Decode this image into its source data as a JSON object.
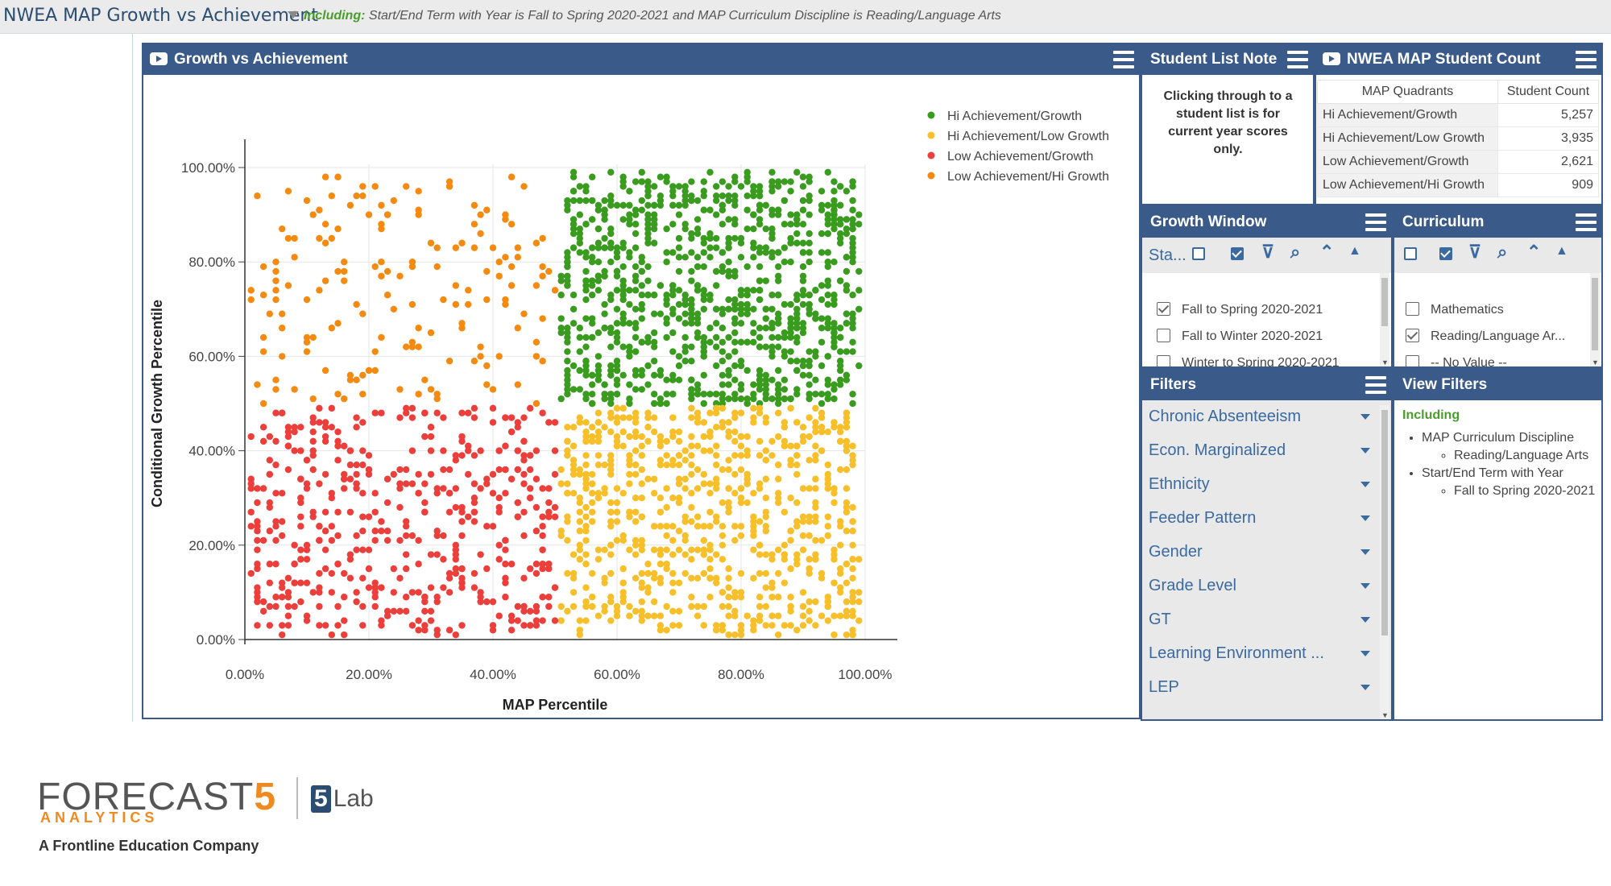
{
  "header": {
    "title": "NWEA MAP Growth vs Achievement",
    "filter_prefix": "Including:",
    "filter_text": "Start/End Term with Year is Fall to Spring 2020-2021 and MAP Curriculum Discipline is Reading/Language Arts"
  },
  "growth_panel": {
    "title": "Growth vs Achievement",
    "legend": [
      {
        "label": "Hi Achievement/Growth",
        "color": "#3a9c1f"
      },
      {
        "label": "Hi Achievement/Low Growth",
        "color": "#f7bf2a"
      },
      {
        "label": "Low Achievement/Growth",
        "color": "#ec3e3a"
      },
      {
        "label": "Low Achievement/Hi Growth",
        "color": "#f58a10"
      }
    ]
  },
  "chart_data": {
    "type": "scatter",
    "xlabel": "MAP Percentile",
    "ylabel": "Conditional Growth Percentile",
    "xlim": [
      0,
      1
    ],
    "ylim": [
      0,
      1
    ],
    "x_ticks": [
      "0.00%",
      "20.00%",
      "40.00%",
      "60.00%",
      "80.00%",
      "100.00%"
    ],
    "y_ticks": [
      "0.00%",
      "20.00%",
      "40.00%",
      "60.00%",
      "80.00%",
      "100.00%"
    ],
    "grid": true,
    "legend_position": "top-right",
    "series": [
      {
        "name": "Hi Achievement/Growth",
        "x_range": [
          0.51,
          0.99
        ],
        "y_range": [
          0.5,
          0.99
        ],
        "count": 5257
      },
      {
        "name": "Hi Achievement/Low Growth",
        "x_range": [
          0.51,
          0.99
        ],
        "y_range": [
          0.01,
          0.49
        ],
        "count": 3935
      },
      {
        "name": "Low Achievement/Growth",
        "x_range": [
          0.01,
          0.5
        ],
        "y_range": [
          0.01,
          0.49
        ],
        "count": 2621
      },
      {
        "name": "Low Achievement/Hi Growth",
        "x_range": [
          0.01,
          0.5
        ],
        "y_range": [
          0.5,
          0.99
        ],
        "count": 909
      }
    ]
  },
  "note_panel": {
    "title": "Student List Note",
    "text": "Clicking through to a student list is for current year scores only."
  },
  "count_panel": {
    "title": "NWEA MAP Student Count",
    "col_quadrant": "MAP Quadrants",
    "col_count": "Student Count",
    "rows": [
      {
        "q": "Hi Achievement/Growth",
        "v": "5,257"
      },
      {
        "q": "Hi Achievement/Low Growth",
        "v": "3,935"
      },
      {
        "q": "Low Achievement/Growth",
        "v": "2,621"
      },
      {
        "q": "Low Achievement/Hi Growth",
        "v": "909"
      }
    ]
  },
  "growth_window": {
    "title": "Growth Window",
    "toolbar_label": "Sta...",
    "options": [
      {
        "label": "Fall to Spring 2020-2021",
        "checked": true
      },
      {
        "label": "Fall to Winter 2020-2021",
        "checked": false
      },
      {
        "label": "Winter to Spring 2020-2021",
        "checked": false
      }
    ]
  },
  "curriculum": {
    "title": "Curriculum",
    "options": [
      {
        "label": "Mathematics",
        "checked": false
      },
      {
        "label": "Reading/Language Ar...",
        "checked": true
      },
      {
        "label": "-- No Value --",
        "checked": false
      }
    ]
  },
  "filters": {
    "title": "Filters",
    "items": [
      "Chronic Absenteeism",
      "Econ. Marginalized",
      "Ethnicity",
      "Feeder Pattern",
      "Gender",
      "Grade Level",
      "GT",
      "Learning Environment ...",
      "LEP"
    ]
  },
  "view_filters": {
    "title": "View Filters",
    "including": "Including",
    "groups": [
      {
        "name": "MAP Curriculum Discipline",
        "value": "Reading/Language Arts"
      },
      {
        "name": "Start/End Term with Year",
        "value": "Fall to Spring 2020-2021"
      }
    ]
  },
  "logo": {
    "brand_main": "FORECAST",
    "brand_five": "5",
    "brand_sub": "ANALYTICS",
    "tagline": "A Frontline Education Company",
    "lab_five": "5",
    "lab_text": "Lab"
  }
}
